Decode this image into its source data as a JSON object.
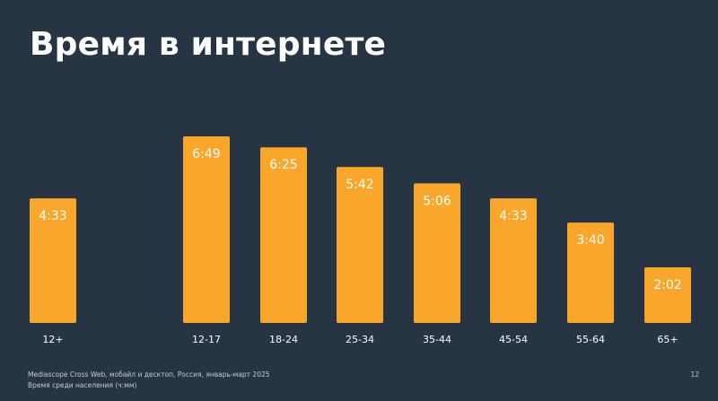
{
  "slide": {
    "title": "Время в интернете",
    "source": "Mediascope Cross Web, мобайл и десктоп, Россия, январь-март 2025",
    "unit_note": "Время среди населения (ч:мм)",
    "page_number": "12"
  },
  "colors": {
    "background": "#273444",
    "bar": "#F9A72B",
    "text": "#FFFFFF"
  },
  "chart_data": {
    "type": "bar",
    "title": "Время в интернете",
    "categories": [
      "12+",
      "12-17",
      "18-24",
      "25-34",
      "35-44",
      "45-54",
      "55-64",
      "65+"
    ],
    "labels": [
      "4:33",
      "6:49",
      "6:25",
      "5:42",
      "5:06",
      "4:33",
      "3:40",
      "2:02"
    ],
    "values_minutes": [
      273,
      409,
      385,
      342,
      306,
      273,
      220,
      122
    ],
    "ylim": [
      0,
      420
    ],
    "grid": false,
    "legend": "none"
  }
}
